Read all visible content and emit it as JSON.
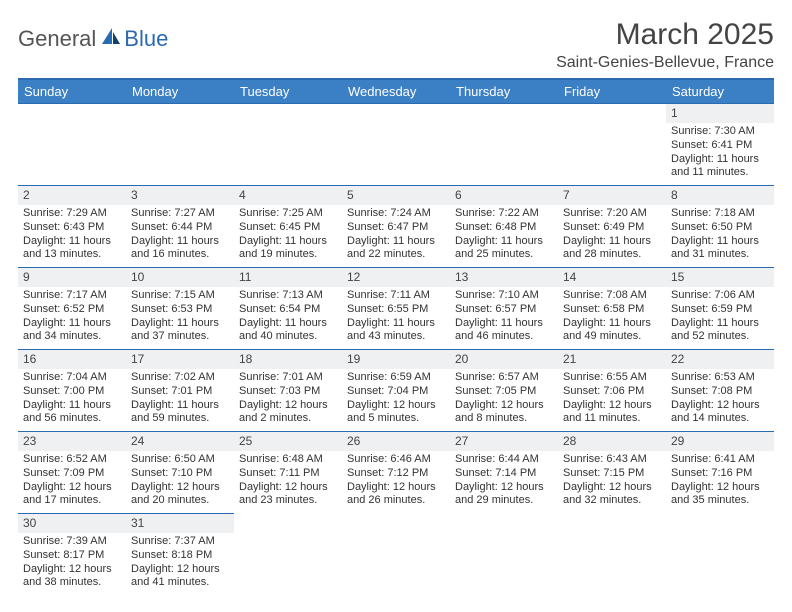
{
  "logo": {
    "word1": "General",
    "word2": "Blue"
  },
  "title": "March 2025",
  "location": "Saint-Genies-Bellevue, France",
  "header_bg": "#3b7fc4",
  "border_color": "#2a6ab0",
  "daynum_bg": "#eef0f2",
  "weekdays": [
    "Sunday",
    "Monday",
    "Tuesday",
    "Wednesday",
    "Thursday",
    "Friday",
    "Saturday"
  ],
  "weeks": [
    [
      null,
      null,
      null,
      null,
      null,
      null,
      {
        "n": "1",
        "sr": "Sunrise: 7:30 AM",
        "ss": "Sunset: 6:41 PM",
        "d1": "Daylight: 11 hours",
        "d2": "and 11 minutes."
      }
    ],
    [
      {
        "n": "2",
        "sr": "Sunrise: 7:29 AM",
        "ss": "Sunset: 6:43 PM",
        "d1": "Daylight: 11 hours",
        "d2": "and 13 minutes."
      },
      {
        "n": "3",
        "sr": "Sunrise: 7:27 AM",
        "ss": "Sunset: 6:44 PM",
        "d1": "Daylight: 11 hours",
        "d2": "and 16 minutes."
      },
      {
        "n": "4",
        "sr": "Sunrise: 7:25 AM",
        "ss": "Sunset: 6:45 PM",
        "d1": "Daylight: 11 hours",
        "d2": "and 19 minutes."
      },
      {
        "n": "5",
        "sr": "Sunrise: 7:24 AM",
        "ss": "Sunset: 6:47 PM",
        "d1": "Daylight: 11 hours",
        "d2": "and 22 minutes."
      },
      {
        "n": "6",
        "sr": "Sunrise: 7:22 AM",
        "ss": "Sunset: 6:48 PM",
        "d1": "Daylight: 11 hours",
        "d2": "and 25 minutes."
      },
      {
        "n": "7",
        "sr": "Sunrise: 7:20 AM",
        "ss": "Sunset: 6:49 PM",
        "d1": "Daylight: 11 hours",
        "d2": "and 28 minutes."
      },
      {
        "n": "8",
        "sr": "Sunrise: 7:18 AM",
        "ss": "Sunset: 6:50 PM",
        "d1": "Daylight: 11 hours",
        "d2": "and 31 minutes."
      }
    ],
    [
      {
        "n": "9",
        "sr": "Sunrise: 7:17 AM",
        "ss": "Sunset: 6:52 PM",
        "d1": "Daylight: 11 hours",
        "d2": "and 34 minutes."
      },
      {
        "n": "10",
        "sr": "Sunrise: 7:15 AM",
        "ss": "Sunset: 6:53 PM",
        "d1": "Daylight: 11 hours",
        "d2": "and 37 minutes."
      },
      {
        "n": "11",
        "sr": "Sunrise: 7:13 AM",
        "ss": "Sunset: 6:54 PM",
        "d1": "Daylight: 11 hours",
        "d2": "and 40 minutes."
      },
      {
        "n": "12",
        "sr": "Sunrise: 7:11 AM",
        "ss": "Sunset: 6:55 PM",
        "d1": "Daylight: 11 hours",
        "d2": "and 43 minutes."
      },
      {
        "n": "13",
        "sr": "Sunrise: 7:10 AM",
        "ss": "Sunset: 6:57 PM",
        "d1": "Daylight: 11 hours",
        "d2": "and 46 minutes."
      },
      {
        "n": "14",
        "sr": "Sunrise: 7:08 AM",
        "ss": "Sunset: 6:58 PM",
        "d1": "Daylight: 11 hours",
        "d2": "and 49 minutes."
      },
      {
        "n": "15",
        "sr": "Sunrise: 7:06 AM",
        "ss": "Sunset: 6:59 PM",
        "d1": "Daylight: 11 hours",
        "d2": "and 52 minutes."
      }
    ],
    [
      {
        "n": "16",
        "sr": "Sunrise: 7:04 AM",
        "ss": "Sunset: 7:00 PM",
        "d1": "Daylight: 11 hours",
        "d2": "and 56 minutes."
      },
      {
        "n": "17",
        "sr": "Sunrise: 7:02 AM",
        "ss": "Sunset: 7:01 PM",
        "d1": "Daylight: 11 hours",
        "d2": "and 59 minutes."
      },
      {
        "n": "18",
        "sr": "Sunrise: 7:01 AM",
        "ss": "Sunset: 7:03 PM",
        "d1": "Daylight: 12 hours",
        "d2": "and 2 minutes."
      },
      {
        "n": "19",
        "sr": "Sunrise: 6:59 AM",
        "ss": "Sunset: 7:04 PM",
        "d1": "Daylight: 12 hours",
        "d2": "and 5 minutes."
      },
      {
        "n": "20",
        "sr": "Sunrise: 6:57 AM",
        "ss": "Sunset: 7:05 PM",
        "d1": "Daylight: 12 hours",
        "d2": "and 8 minutes."
      },
      {
        "n": "21",
        "sr": "Sunrise: 6:55 AM",
        "ss": "Sunset: 7:06 PM",
        "d1": "Daylight: 12 hours",
        "d2": "and 11 minutes."
      },
      {
        "n": "22",
        "sr": "Sunrise: 6:53 AM",
        "ss": "Sunset: 7:08 PM",
        "d1": "Daylight: 12 hours",
        "d2": "and 14 minutes."
      }
    ],
    [
      {
        "n": "23",
        "sr": "Sunrise: 6:52 AM",
        "ss": "Sunset: 7:09 PM",
        "d1": "Daylight: 12 hours",
        "d2": "and 17 minutes."
      },
      {
        "n": "24",
        "sr": "Sunrise: 6:50 AM",
        "ss": "Sunset: 7:10 PM",
        "d1": "Daylight: 12 hours",
        "d2": "and 20 minutes."
      },
      {
        "n": "25",
        "sr": "Sunrise: 6:48 AM",
        "ss": "Sunset: 7:11 PM",
        "d1": "Daylight: 12 hours",
        "d2": "and 23 minutes."
      },
      {
        "n": "26",
        "sr": "Sunrise: 6:46 AM",
        "ss": "Sunset: 7:12 PM",
        "d1": "Daylight: 12 hours",
        "d2": "and 26 minutes."
      },
      {
        "n": "27",
        "sr": "Sunrise: 6:44 AM",
        "ss": "Sunset: 7:14 PM",
        "d1": "Daylight: 12 hours",
        "d2": "and 29 minutes."
      },
      {
        "n": "28",
        "sr": "Sunrise: 6:43 AM",
        "ss": "Sunset: 7:15 PM",
        "d1": "Daylight: 12 hours",
        "d2": "and 32 minutes."
      },
      {
        "n": "29",
        "sr": "Sunrise: 6:41 AM",
        "ss": "Sunset: 7:16 PM",
        "d1": "Daylight: 12 hours",
        "d2": "and 35 minutes."
      }
    ],
    [
      {
        "n": "30",
        "sr": "Sunrise: 7:39 AM",
        "ss": "Sunset: 8:17 PM",
        "d1": "Daylight: 12 hours",
        "d2": "and 38 minutes."
      },
      {
        "n": "31",
        "sr": "Sunrise: 7:37 AM",
        "ss": "Sunset: 8:18 PM",
        "d1": "Daylight: 12 hours",
        "d2": "and 41 minutes."
      },
      null,
      null,
      null,
      null,
      null
    ]
  ]
}
